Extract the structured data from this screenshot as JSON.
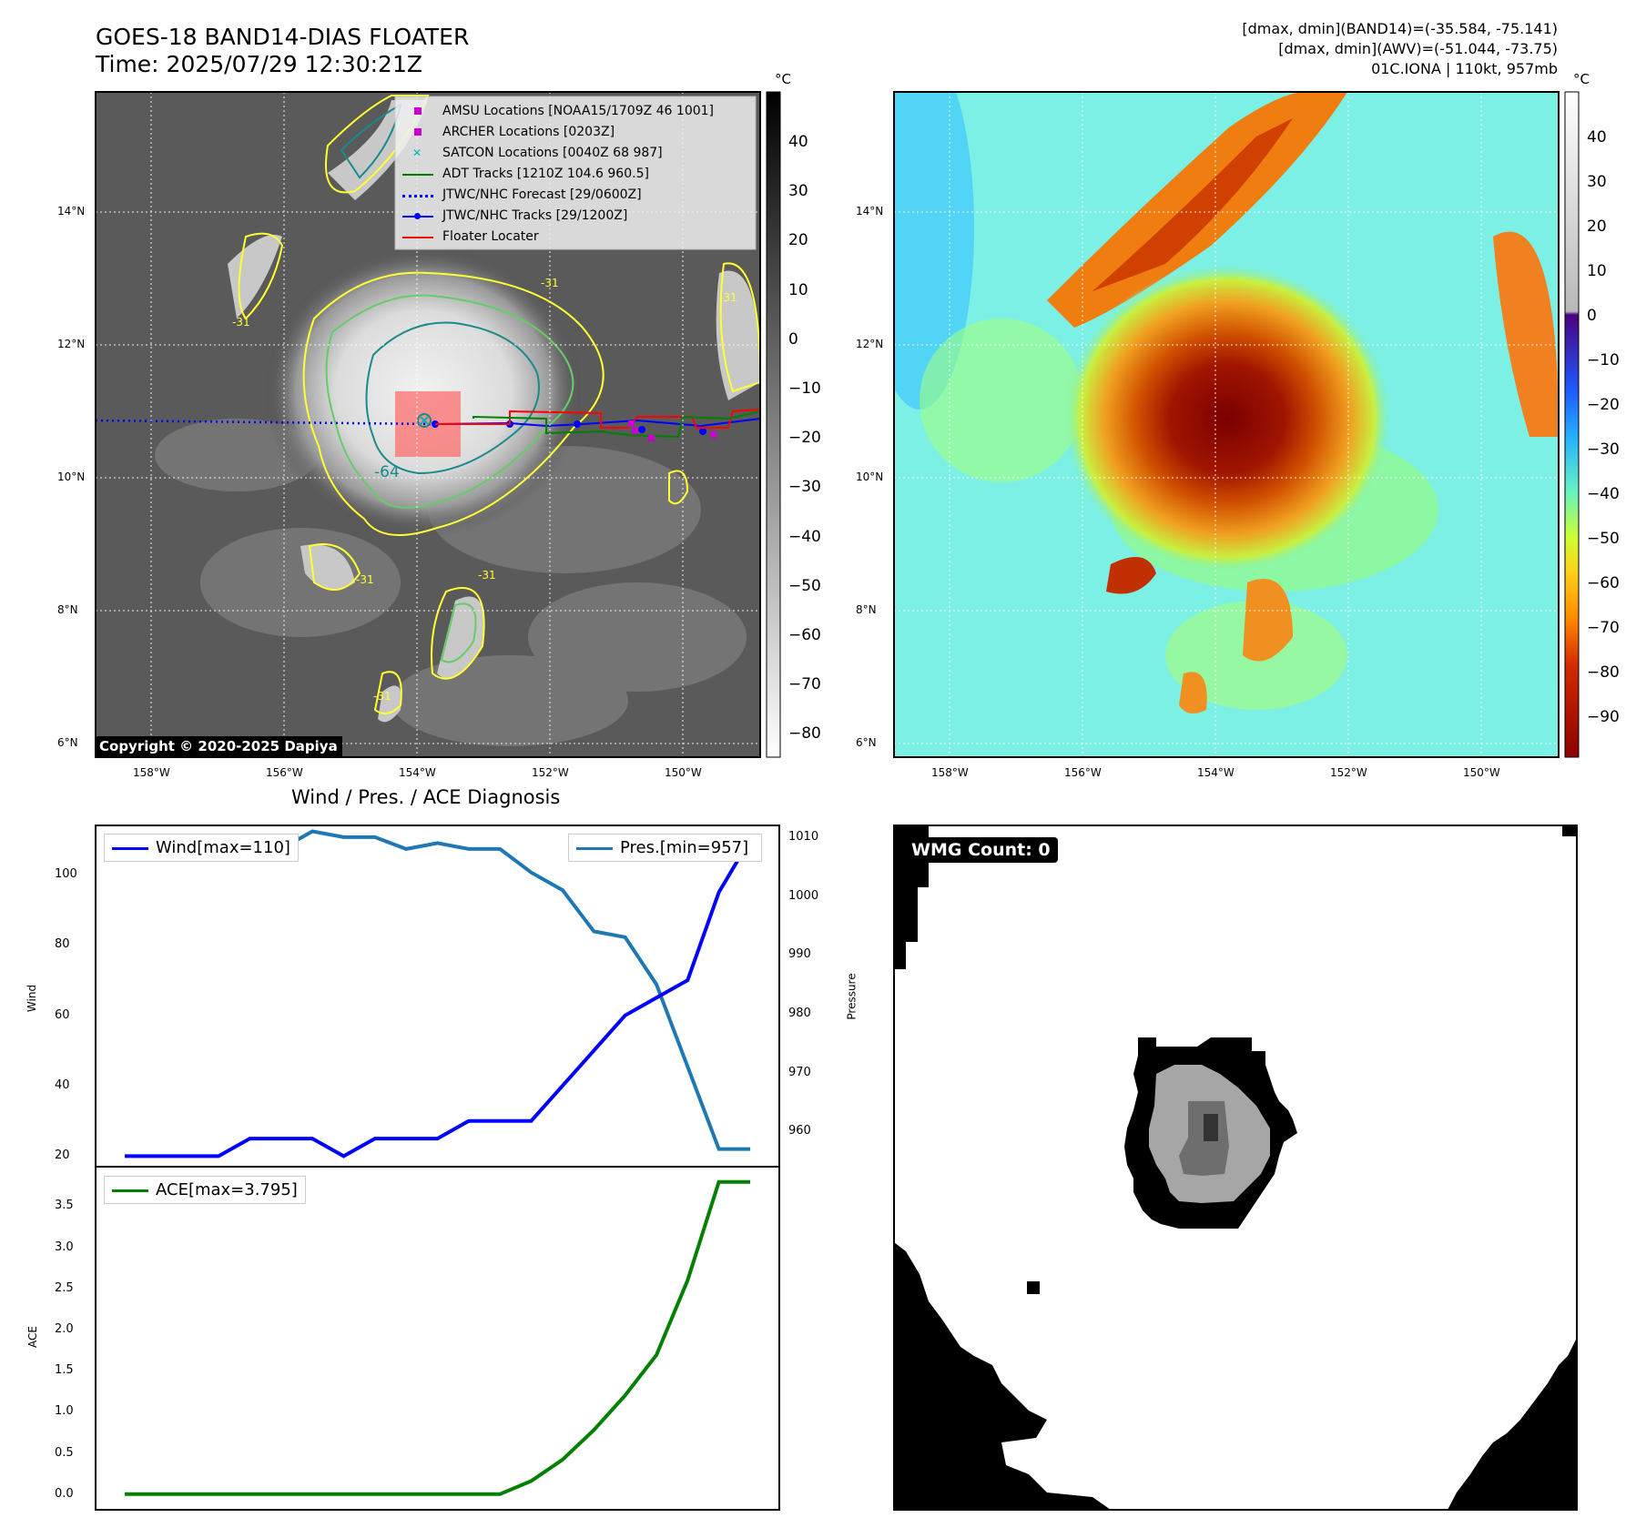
{
  "header": {
    "title": "GOES-18 BAND14-DIAS FLOATER",
    "time": "Time: 2025/07/29 12:30:21Z",
    "stats_line1": "[dmax, dmin](BAND14)=(-35.584, -75.141)",
    "stats_line2": "[dmax, dmin](AWV)=(-51.044, -73.75)",
    "stats_line3": "01C.IONA | 110kt, 957mb"
  },
  "colors": {
    "amsu": "#cc00cc",
    "archer": "#cc00cc",
    "satcon": "#00b3b3",
    "adt": "#008000",
    "jtwc_forecast": "#0000ff",
    "jtwc_tracks": "#0000ff",
    "floater": "#ff0000",
    "wind_line": "#0000ff",
    "pres_line": "#1f77b4",
    "ace_line": "#008000",
    "contour_yellow": "#ffff33",
    "contour_green": "#66cc66",
    "contour_teal": "#1a8a8a"
  },
  "maps": {
    "lat_labels": [
      "14°N",
      "12°N",
      "10°N",
      "8°N",
      "6°N"
    ],
    "lon_labels": [
      "158°W",
      "156°W",
      "154°W",
      "152°W",
      "150°W"
    ],
    "ir": {
      "colorbar_unit": "°C",
      "colorbar_ticks": [
        "40",
        "30",
        "20",
        "10",
        "0",
        "−10",
        "−20",
        "−30",
        "−40",
        "−50",
        "−60",
        "−70",
        "−80"
      ],
      "copyright": "Copyright © 2020-2025 Dapiya",
      "contour_labels": [
        "-64",
        "-31",
        "-31",
        "-31",
        "-31",
        "-31",
        "-31"
      ],
      "legend": [
        {
          "label": "AMSU Locations [NOAA15/1709Z 46 1001]",
          "marker": "square",
          "color_key": "amsu"
        },
        {
          "label": "ARCHER Locations [0203Z]",
          "marker": "square",
          "color_key": "archer"
        },
        {
          "label": "SATCON Locations [0040Z 68 987]",
          "marker": "x",
          "color_key": "satcon"
        },
        {
          "label": "ADT Tracks [1210Z 104.6 960.5]",
          "marker": "line",
          "color_key": "adt"
        },
        {
          "label": "JTWC/NHC Forecast [29/0600Z]",
          "marker": "dotted",
          "color_key": "jtwc_forecast"
        },
        {
          "label": "JTWC/NHC Tracks [29/1200Z]",
          "marker": "line-dot",
          "color_key": "jtwc_tracks"
        },
        {
          "label": "Floater Locater",
          "marker": "line",
          "color_key": "floater"
        }
      ]
    },
    "enhanced": {
      "colorbar_unit": "°C",
      "colorbar_ticks": [
        "40",
        "30",
        "20",
        "10",
        "0",
        "−10",
        "−20",
        "−30",
        "−40",
        "−50",
        "−60",
        "−70",
        "−80",
        "−90"
      ]
    }
  },
  "wmg": {
    "label": "WMG Count: 0"
  },
  "chart_data": [
    {
      "type": "line",
      "title": "Wind / Pres. / ACE Diagnosis",
      "xlabel": "",
      "x": [
        0,
        1,
        2,
        3,
        4,
        5,
        6,
        7,
        8,
        9,
        10,
        11,
        12,
        13,
        14,
        15,
        16,
        17,
        18,
        19,
        20
      ],
      "series": [
        {
          "name": "Wind[max=110]",
          "axis": "left",
          "color_key": "wind_line",
          "values": [
            20,
            20,
            20,
            20,
            25,
            25,
            25,
            20,
            25,
            25,
            25,
            30,
            30,
            30,
            40,
            50,
            60,
            65,
            70,
            95,
            110
          ]
        },
        {
          "name": "Pres.[min=957]",
          "axis": "right",
          "color_key": "pres_line",
          "values": [
            1010,
            1010,
            1010,
            1009,
            1008,
            1008,
            1011,
            1010,
            1010,
            1008,
            1009,
            1008,
            1008,
            1004,
            1001,
            994,
            993,
            985,
            971,
            957,
            957
          ]
        }
      ],
      "ylabel_left": "Wind",
      "ylabel_right": "Pressure",
      "ylim_left": [
        17,
        114
      ],
      "ylim_right": [
        954,
        1012
      ],
      "yticks_left": [
        "20",
        "40",
        "60",
        "80",
        "100"
      ],
      "yticks_right": [
        "960",
        "970",
        "980",
        "990",
        "1000",
        "1010"
      ]
    },
    {
      "type": "line",
      "xlabel": "",
      "x": [
        0,
        1,
        2,
        3,
        4,
        5,
        6,
        7,
        8,
        9,
        10,
        11,
        12,
        13,
        14,
        15,
        16,
        17,
        18,
        19,
        20
      ],
      "series": [
        {
          "name": "ACE[max=3.795]",
          "color_key": "ace_line",
          "values": [
            0,
            0,
            0,
            0,
            0,
            0,
            0,
            0,
            0,
            0,
            0,
            0,
            0,
            0.16,
            0.42,
            0.78,
            1.2,
            1.69,
            2.6,
            3.795,
            3.795
          ]
        }
      ],
      "ylabel": "ACE",
      "ylim": [
        -0.19,
        3.98
      ],
      "yticks": [
        "0.0",
        "0.5",
        "1.0",
        "1.5",
        "2.0",
        "2.5",
        "3.0",
        "3.5"
      ]
    }
  ]
}
